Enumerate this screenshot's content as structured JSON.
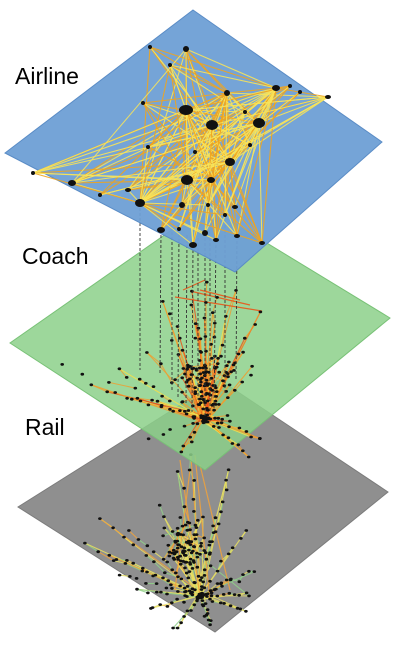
{
  "layers": [
    {
      "id": "airline",
      "label": "Airline",
      "fill": "#6e9fd5",
      "stroke": "#5a8cc6"
    },
    {
      "id": "coach",
      "label": "Coach",
      "fill": "#8cd08a",
      "stroke": "#79c277"
    },
    {
      "id": "rail",
      "label": "Rail",
      "fill": "#8f8f8f",
      "stroke": "#7c7c7c"
    }
  ],
  "colors": {
    "airline_edge_light": "#f7e35a",
    "airline_edge_dark": "#f0a41e",
    "coach_edge_hot": "#e9561a",
    "coach_edge_warm": "#f39b2a",
    "coach_edge_light": "#f5e04a",
    "rail_edge_light": "#e8e060",
    "rail_edge_green": "#8fd08a",
    "rail_edge_orange": "#f2a23a",
    "node": "#111111",
    "interlayer_link": "#333333"
  }
}
